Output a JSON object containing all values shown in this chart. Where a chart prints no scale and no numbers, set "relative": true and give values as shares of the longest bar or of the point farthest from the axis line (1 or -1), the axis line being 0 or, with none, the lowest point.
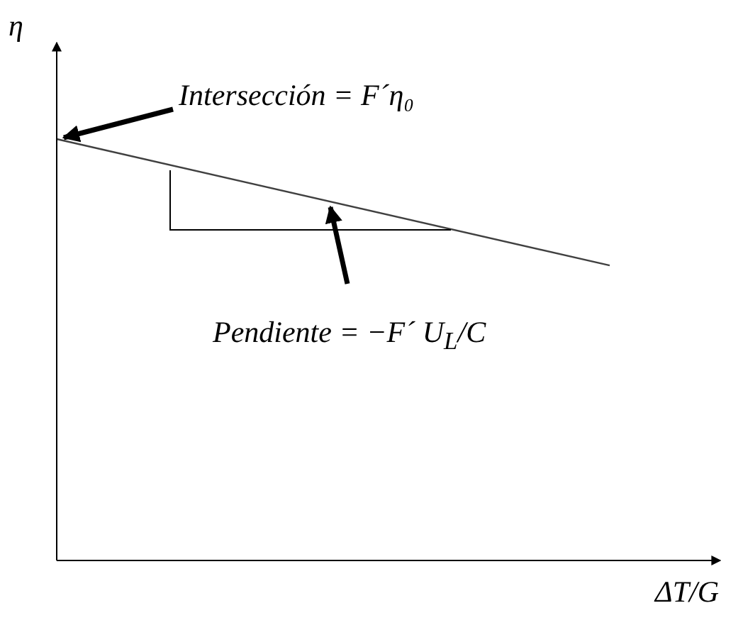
{
  "chart_data": {
    "type": "line",
    "relative": true,
    "categories": [
      null,
      null
    ],
    "values": [
      1,
      0.7
    ],
    "color": "#404040",
    "xlabel": "ΔT/G",
    "ylabel": "η",
    "annotations": [
      "Intersección = F´η₀",
      "Pendiente = −F´ U$_{L}$/C"
    ]
  }
}
